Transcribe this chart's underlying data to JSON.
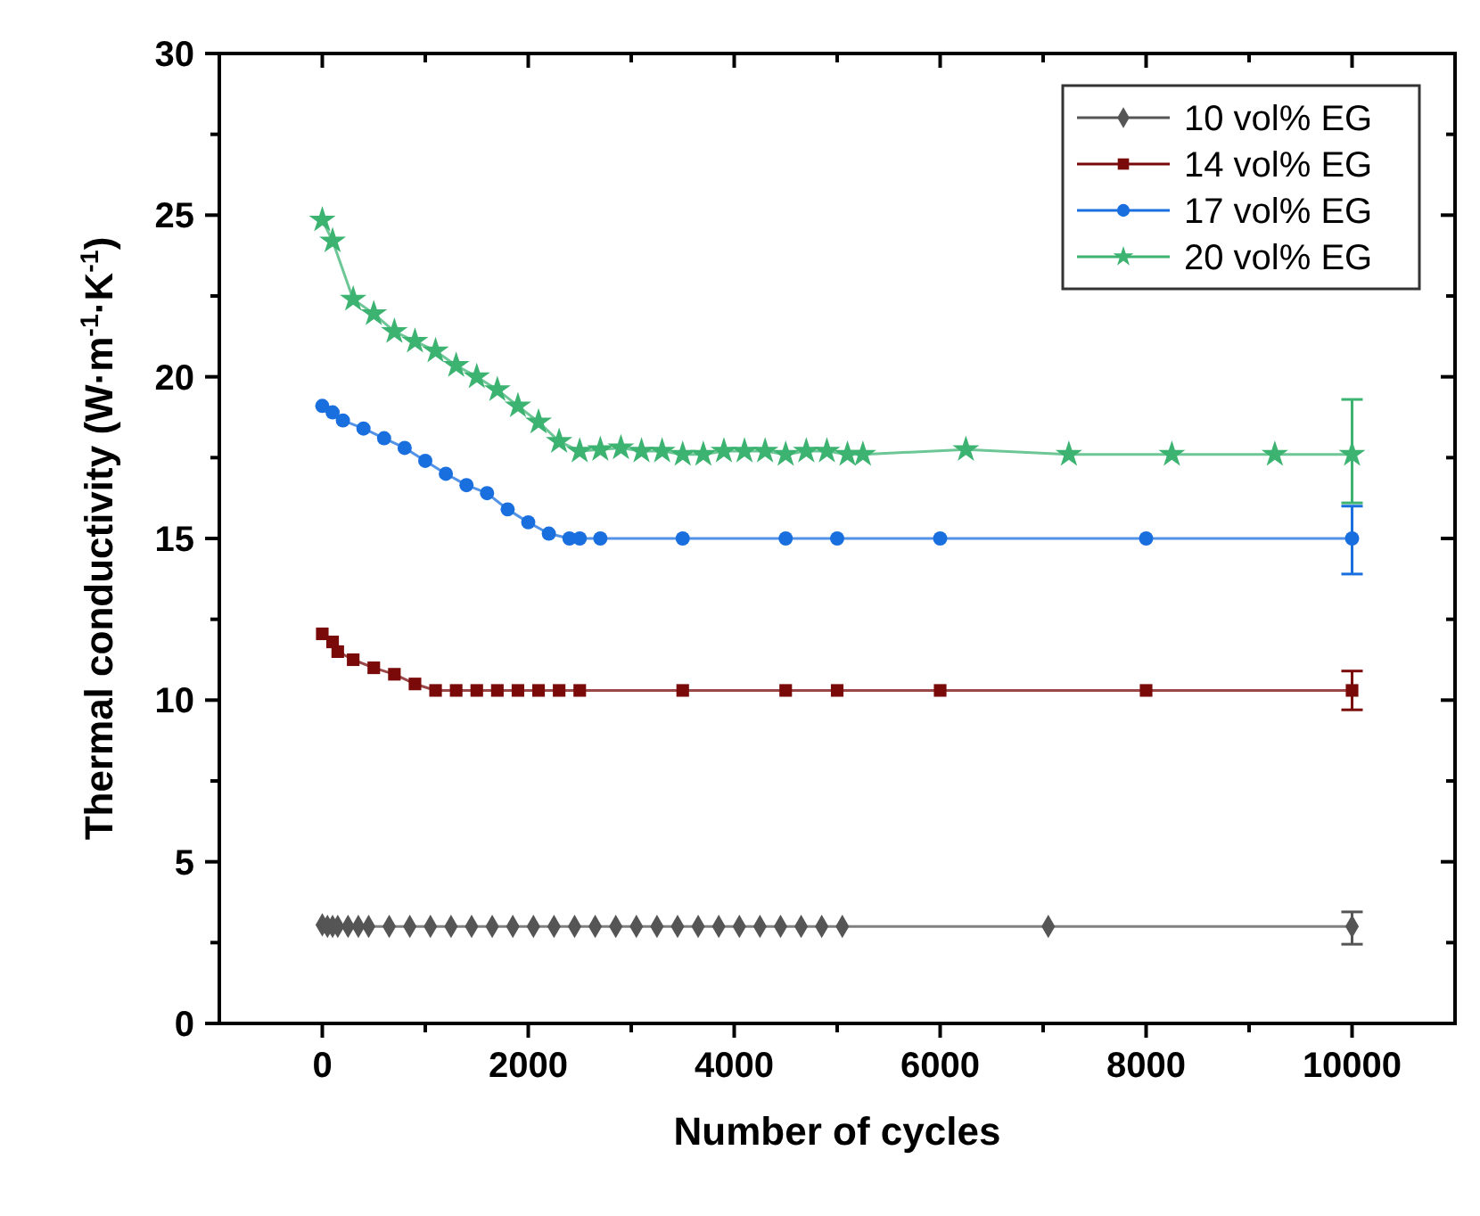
{
  "chart_data": {
    "type": "line",
    "xlabel": "Number of cycles",
    "ylabel": "Thermal conductivity (W·m$^{-1}$·K$^{-1}$)",
    "xlim": [
      -1000,
      11000
    ],
    "xticks": [
      0,
      {
        "value": 1000,
        "label": null
      },
      2000,
      {
        "value": 3000,
        "label": null
      },
      4000,
      {
        "value": 5000,
        "label": null
      },
      6000,
      {
        "value": 7000,
        "label": null
      },
      8000,
      {
        "value": 9000,
        "label": null
      },
      10000
    ],
    "ylim": [
      0,
      30
    ],
    "yticks": [
      0,
      {
        "value": 2.5,
        "label": null
      },
      5,
      {
        "value": 7.5,
        "label": null
      },
      10,
      {
        "value": 12.5,
        "label": null
      },
      15,
      {
        "value": 17.5,
        "label": null
      },
      20,
      {
        "value": 22.5,
        "label": null
      },
      25,
      {
        "value": 27.5,
        "label": null
      },
      30
    ],
    "legend": "top right",
    "grid": false,
    "series": [
      {
        "name": "10 vol% EG",
        "color": "#555555",
        "marker": "diamond",
        "x": [
          0,
          50,
          100,
          150,
          250,
          350,
          450,
          650,
          850,
          1050,
          1250,
          1450,
          1650,
          1850,
          2050,
          2250,
          2450,
          2650,
          2850,
          3050,
          3250,
          3450,
          3650,
          3850,
          4050,
          4250,
          4450,
          4650,
          4850,
          5050,
          7050,
          10000
        ],
        "values": [
          3.05,
          3.0,
          3.0,
          3.0,
          3.0,
          3.0,
          3.0,
          3.0,
          3.0,
          3.0,
          3.0,
          3.0,
          3.0,
          3.0,
          3.0,
          3.0,
          3.0,
          3.0,
          3.0,
          3.0,
          3.0,
          3.0,
          3.0,
          3.0,
          3.0,
          3.0,
          3.0,
          3.0,
          3.0,
          3.0,
          3.0,
          3.0
        ],
        "errors": [
          null,
          null,
          null,
          null,
          null,
          null,
          null,
          null,
          null,
          null,
          null,
          null,
          null,
          null,
          null,
          null,
          null,
          null,
          null,
          null,
          null,
          null,
          null,
          null,
          null,
          null,
          null,
          null,
          null,
          null,
          null,
          [
            2.45,
            3.45
          ]
        ]
      },
      {
        "name": "14 vol% EG",
        "color": "#7a0a0a",
        "marker": "square",
        "x": [
          0,
          100,
          150,
          300,
          500,
          700,
          900,
          1100,
          1300,
          1500,
          1700,
          1900,
          2100,
          2300,
          2500,
          3500,
          4500,
          5000,
          6000,
          8000,
          10000
        ],
        "values": [
          12.05,
          11.8,
          11.5,
          11.25,
          11.0,
          10.8,
          10.5,
          10.3,
          10.3,
          10.3,
          10.3,
          10.3,
          10.3,
          10.3,
          10.3,
          10.3,
          10.3,
          10.3,
          10.3,
          10.3,
          10.3
        ],
        "errors": [
          null,
          null,
          null,
          null,
          null,
          null,
          null,
          null,
          null,
          null,
          null,
          null,
          null,
          null,
          null,
          null,
          null,
          null,
          null,
          null,
          [
            9.7,
            10.9
          ]
        ]
      },
      {
        "name": "17 vol% EG",
        "color": "#1a6fdf",
        "marker": "circle",
        "x": [
          0,
          100,
          200,
          400,
          600,
          800,
          1000,
          1200,
          1400,
          1600,
          1800,
          2000,
          2200,
          2400,
          2500,
          2700,
          3500,
          4500,
          5000,
          6000,
          8000,
          10000
        ],
        "values": [
          19.1,
          18.9,
          18.65,
          18.4,
          18.1,
          17.8,
          17.4,
          17.0,
          16.65,
          16.4,
          15.9,
          15.5,
          15.15,
          15.0,
          15.0,
          15.0,
          15.0,
          15.0,
          15.0,
          15.0,
          15.0,
          15.0
        ],
        "errors": [
          null,
          null,
          null,
          null,
          null,
          null,
          null,
          null,
          null,
          null,
          null,
          null,
          null,
          null,
          null,
          null,
          null,
          null,
          null,
          null,
          null,
          [
            13.9,
            16.0
          ]
        ]
      },
      {
        "name": "20 vol% EG",
        "color": "#3cb371",
        "marker": "star",
        "x": [
          0,
          100,
          300,
          500,
          700,
          900,
          1100,
          1300,
          1500,
          1700,
          1900,
          2100,
          2300,
          2500,
          2700,
          2900,
          3100,
          3300,
          3500,
          3700,
          3900,
          4100,
          4300,
          4500,
          4700,
          4900,
          5100,
          5250,
          6250,
          7250,
          8250,
          9250,
          10000
        ],
        "values": [
          24.85,
          24.2,
          22.4,
          21.95,
          21.4,
          21.1,
          20.8,
          20.35,
          20.0,
          19.6,
          19.1,
          18.6,
          18.0,
          17.7,
          17.75,
          17.8,
          17.7,
          17.7,
          17.6,
          17.6,
          17.7,
          17.7,
          17.7,
          17.6,
          17.7,
          17.7,
          17.6,
          17.6,
          17.75,
          17.6,
          17.6,
          17.6,
          17.6
        ],
        "errors": [
          null,
          null,
          null,
          null,
          null,
          null,
          null,
          null,
          null,
          null,
          null,
          null,
          null,
          null,
          null,
          null,
          null,
          null,
          null,
          null,
          null,
          null,
          null,
          null,
          null,
          null,
          null,
          null,
          null,
          null,
          null,
          null,
          [
            16.1,
            19.3
          ]
        ]
      }
    ]
  }
}
